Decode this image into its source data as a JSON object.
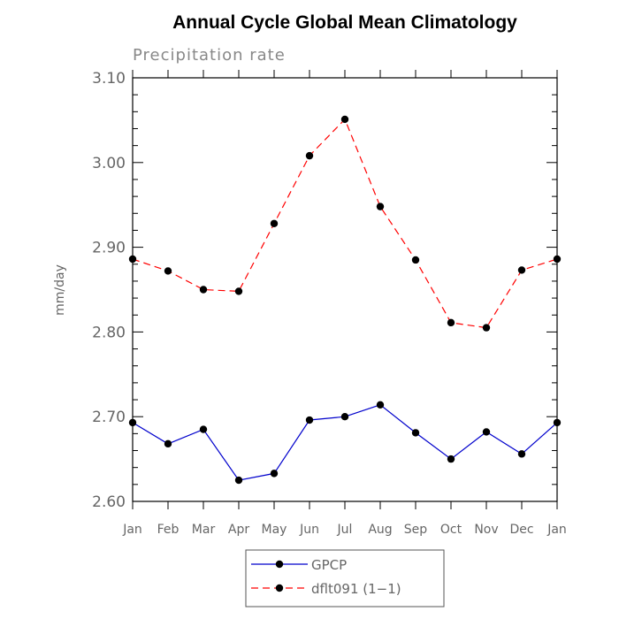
{
  "chart_data": {
    "type": "line",
    "title": "Annual Cycle Global Mean Climatology",
    "subtitle": "Precipitation rate",
    "xlabel": "",
    "ylabel": "mm/day",
    "categories": [
      "Jan",
      "Feb",
      "Mar",
      "Apr",
      "May",
      "Jun",
      "Jul",
      "Aug",
      "Sep",
      "Oct",
      "Nov",
      "Dec",
      "Jan"
    ],
    "ylim": [
      2.6,
      3.1
    ],
    "yticks": [
      "2.60",
      "2.70",
      "2.80",
      "2.90",
      "3.00",
      "3.10"
    ],
    "grid": false,
    "legend_position": "bottom-center",
    "series": [
      {
        "name": "GPCP",
        "color": "#0000cc",
        "line_style": "solid",
        "marker": "filled-circle",
        "values": [
          2.693,
          2.668,
          2.685,
          2.625,
          2.633,
          2.696,
          2.7,
          2.714,
          2.681,
          2.65,
          2.682,
          2.656,
          2.693
        ]
      },
      {
        "name": "dflt091 (1−1)",
        "color": "#ff0000",
        "line_style": "dashed",
        "marker": "filled-circle",
        "values": [
          2.886,
          2.872,
          2.85,
          2.848,
          2.928,
          3.008,
          3.051,
          2.948,
          2.885,
          2.811,
          2.805,
          2.873,
          2.886
        ]
      }
    ]
  }
}
